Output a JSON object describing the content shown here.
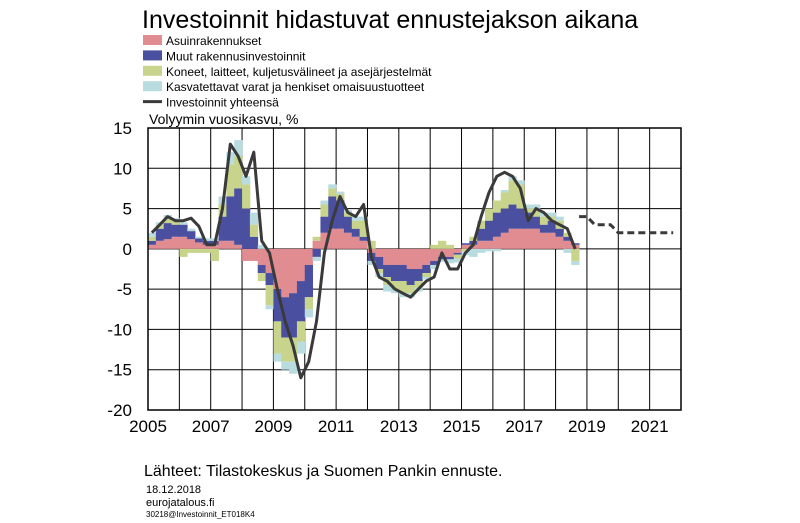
{
  "chart_data": {
    "type": "bar",
    "title": "Investoinnit hidastuvat ennustejakson aikana",
    "ylabel": "Volyymin vuosikasvu, %",
    "xlabel": "",
    "ylim": [
      -20,
      15
    ],
    "xlim": [
      2005,
      2022
    ],
    "grid": true,
    "legend_placement": "top-left",
    "y_ticks": [
      "15",
      "10",
      "5",
      "0",
      "-5",
      "-10",
      "-15",
      "-20"
    ],
    "x_ticks": [
      "2005",
      "2007",
      "2009",
      "2011",
      "2013",
      "2015",
      "2017",
      "2019",
      "2021"
    ],
    "colors": {
      "residential": "#e08c90",
      "other_construction": "#4a4fa0",
      "machinery": "#c8d48c",
      "intangible": "#b8dce0",
      "total": "#3a3a3a"
    },
    "quarters": [
      2005.0,
      2005.25,
      2005.5,
      2005.75,
      2006.0,
      2006.25,
      2006.5,
      2006.75,
      2007.0,
      2007.25,
      2007.5,
      2007.75,
      2008.0,
      2008.25,
      2008.5,
      2008.75,
      2009.0,
      2009.25,
      2009.5,
      2009.75,
      2010.0,
      2010.25,
      2010.5,
      2010.75,
      2011.0,
      2011.25,
      2011.5,
      2011.75,
      2012.0,
      2012.25,
      2012.5,
      2012.75,
      2013.0,
      2013.25,
      2013.5,
      2013.75,
      2014.0,
      2014.25,
      2014.5,
      2014.75,
      2015.0,
      2015.25,
      2015.5,
      2015.75,
      2016.0,
      2016.25,
      2016.5,
      2016.75,
      2017.0,
      2017.25,
      2017.5,
      2017.75,
      2018.0,
      2018.25,
      2018.5
    ],
    "series": [
      {
        "name": "Asuinrakennukset",
        "key": "residential",
        "values": [
          0.5,
          1.0,
          1.2,
          1.5,
          1.5,
          1.2,
          0.8,
          0.5,
          0.5,
          1.0,
          1.0,
          0.5,
          -1.5,
          -1.5,
          -2.0,
          -3.0,
          -5.0,
          -6.0,
          -5.5,
          -4.0,
          -2.0,
          1.0,
          2.0,
          2.5,
          2.5,
          2.0,
          1.5,
          1.0,
          -0.5,
          -1.0,
          -2.0,
          -2.0,
          -2.0,
          -2.5,
          -2.5,
          -2.0,
          -1.5,
          -1.0,
          -1.0,
          -0.5,
          0.5,
          0.5,
          1.0,
          1.0,
          1.5,
          2.0,
          2.5,
          2.5,
          2.5,
          2.5,
          2.0,
          2.0,
          1.5,
          1.0,
          0.5
        ]
      },
      {
        "name": "Muut rakennusinvestoinnit",
        "key": "other_construction",
        "values": [
          0.5,
          1.5,
          2.0,
          1.5,
          1.5,
          1.0,
          0.5,
          0.5,
          0.5,
          3.0,
          5.5,
          7.0,
          5.0,
          1.5,
          -1.0,
          -1.5,
          -4.0,
          -5.0,
          -5.5,
          -5.0,
          -4.0,
          -1.0,
          2.0,
          4.0,
          3.5,
          2.0,
          1.0,
          0.5,
          -1.0,
          -1.5,
          -1.5,
          -2.0,
          -2.0,
          -2.0,
          -1.5,
          -1.0,
          -0.5,
          -0.3,
          -0.3,
          -0.2,
          0.2,
          0.5,
          1.5,
          2.5,
          3.0,
          3.0,
          3.0,
          2.5,
          2.0,
          1.5,
          1.0,
          1.5,
          1.0,
          0.5,
          0.2
        ]
      },
      {
        "name": "Koneet, laitteet, kuljetusvälineet ja asejärjestelmät",
        "key": "machinery",
        "values": [
          0.5,
          0.5,
          0.5,
          0.5,
          -1.0,
          -0.5,
          -0.5,
          -0.5,
          -1.5,
          1.5,
          4.0,
          4.0,
          3.0,
          1.5,
          -1.0,
          -2.5,
          -4.0,
          -3.0,
          -3.0,
          -2.5,
          -1.5,
          0.5,
          1.5,
          1.0,
          0.8,
          0.5,
          1.0,
          2.0,
          1.0,
          -0.5,
          -1.0,
          -1.0,
          -1.5,
          -1.0,
          -0.8,
          -0.5,
          0.5,
          1.0,
          0.5,
          -0.5,
          -0.3,
          0.5,
          1.0,
          1.5,
          1.5,
          2.0,
          3.0,
          3.0,
          0.5,
          1.0,
          1.0,
          0.5,
          1.0,
          0.5,
          -1.5
        ]
      },
      {
        "name": "Kasvatettavat varat ja henkiset omaisuustuotteet",
        "key": "intangible",
        "values": [
          0.5,
          0.3,
          0.5,
          0.3,
          0.3,
          0.3,
          0.2,
          0.3,
          0.3,
          1.0,
          1.5,
          2.0,
          1.0,
          1.5,
          0.5,
          -0.5,
          -1.0,
          -1.0,
          -1.5,
          -1.5,
          -1.0,
          -0.5,
          0.5,
          0.5,
          0.3,
          0.3,
          0.5,
          0.5,
          -0.5,
          -0.5,
          -0.8,
          -0.5,
          -0.5,
          -0.5,
          -0.5,
          -0.3,
          -0.5,
          -0.3,
          -0.5,
          -0.5,
          -0.5,
          -1.0,
          -0.5,
          -0.3,
          -0.3,
          0.3,
          0.5,
          0.5,
          0.5,
          0.5,
          0.5,
          0.5,
          0.5,
          -0.5,
          -0.5
        ]
      },
      {
        "name": "Investoinnit yhteensä",
        "key": "total",
        "type": "line",
        "values": [
          2.0,
          3.0,
          4.0,
          3.5,
          3.5,
          3.8,
          2.8,
          0.5,
          0.5,
          5.0,
          13.0,
          11.5,
          9.0,
          12.0,
          1.0,
          -0.5,
          -5.0,
          -9.0,
          -12.0,
          -16.0,
          -14.0,
          -9.0,
          -0.5,
          3.5,
          6.5,
          4.5,
          4.0,
          5.5,
          -1.0,
          -3.5,
          -4.0,
          -5.0,
          -5.5,
          -6.0,
          -5.0,
          -4.0,
          -3.5,
          -0.5,
          -2.5,
          -2.5,
          -0.5,
          0.5,
          4.0,
          7.0,
          9.0,
          9.5,
          9.0,
          7.5,
          3.5,
          5.0,
          4.5,
          3.5,
          3.0,
          2.5,
          0.0
        ]
      },
      {
        "name": "Investoinnit yhteensä (ennuste)",
        "key": "forecast",
        "type": "line-dashed",
        "x": [
          2018.75,
          2019.0,
          2019.25,
          2019.5,
          2019.75,
          2020.0,
          2020.25,
          2020.5,
          2020.75,
          2021.0,
          2021.25,
          2021.5,
          2021.75
        ],
        "values": [
          4.0,
          4.0,
          3.0,
          3.0,
          3.0,
          2.0,
          2.0,
          2.0,
          2.0,
          2.0,
          2.0,
          2.0,
          2.0
        ]
      }
    ]
  },
  "legend": [
    {
      "label": "Asuinrakennukset",
      "key": "residential"
    },
    {
      "label": "Muut rakennusinvestoinnit",
      "key": "other_construction"
    },
    {
      "label": "Koneet, laitteet, kuljetusvälineet ja asejärjestelmät",
      "key": "machinery"
    },
    {
      "label": "Kasvatettavat varat ja henkiset omaisuustuotteet",
      "key": "intangible"
    },
    {
      "label": "Investoinnit yhteensä",
      "key": "total"
    }
  ],
  "footer": {
    "source": "Lähteet: Tilastokeskus ja Suomen Pankin ennuste.",
    "date": "18.12.2018",
    "site": "eurojatalous.fi",
    "code": "30218@Investoinnit_ET018K4"
  }
}
